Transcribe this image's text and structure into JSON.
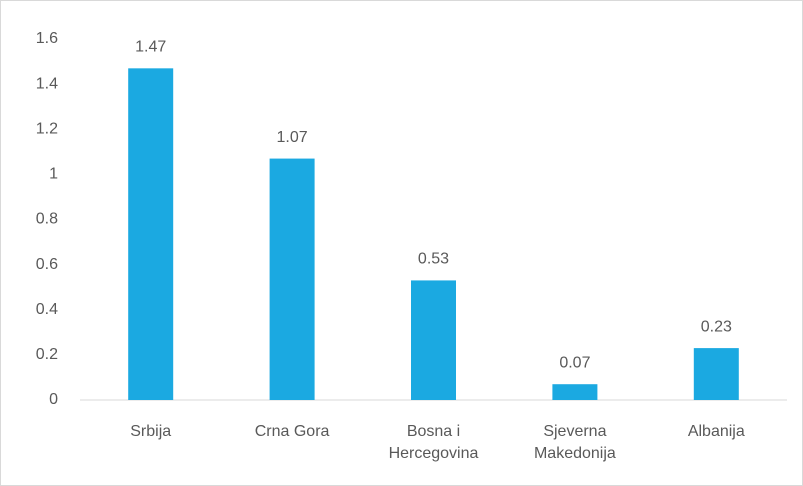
{
  "chart_data": {
    "type": "bar",
    "categories": [
      "Srbija",
      "Crna Gora",
      "Bosna i Hercegovina",
      "Sjeverna Makedonija",
      "Albanija"
    ],
    "values": [
      1.47,
      1.07,
      0.53,
      0.07,
      0.23
    ],
    "color": "#1ba9e1",
    "ylim": [
      0,
      1.6
    ],
    "yticks": [
      0,
      0.2,
      0.4,
      0.6,
      0.8,
      1,
      1.2,
      1.4,
      1.6
    ],
    "grid": false
  }
}
